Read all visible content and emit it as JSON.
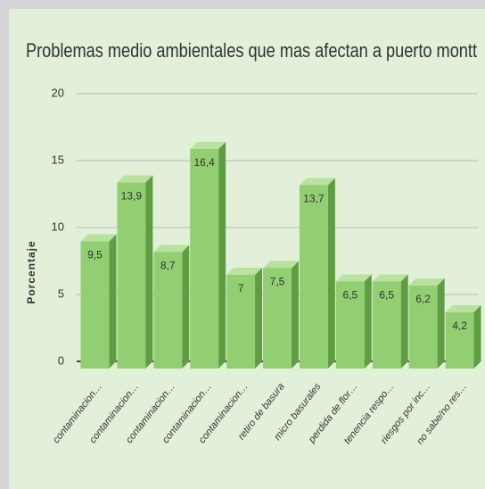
{
  "chart_data": {
    "type": "bar",
    "title": "Problemas medio ambientales que mas afectan a puerto montt",
    "y_label": "Porcentaje",
    "categories": [
      "contaminacion…",
      "contaminacion…",
      "contaminacion…",
      "contaminacion…",
      "contaminacion…",
      "retiro de basura",
      "micro basurales",
      "perdida de flor…",
      "tenencia respo…",
      "riesgos por inc…",
      "no sabe/no res…"
    ],
    "values": [
      9.5,
      13.9,
      8.7,
      16.4,
      7,
      7.5,
      13.7,
      6.5,
      6.5,
      6.2,
      4.2
    ],
    "value_labels": [
      "9,5",
      "13,9",
      "8,7",
      "16,4",
      "7",
      "7,5",
      "13,7",
      "6,5",
      "6,5",
      "6,2",
      "4,2"
    ],
    "color": "#92cf72",
    "ylim": [
      0,
      20
    ],
    "yticks": [
      0,
      5,
      10,
      15,
      20
    ],
    "grid": true
  }
}
